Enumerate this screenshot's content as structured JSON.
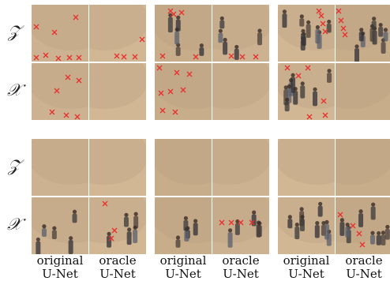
{
  "row_labels": [
    "𝒵",
    "𝒳",
    "𝒵",
    "𝒳"
  ],
  "captions": [
    [
      "original",
      "U-Net"
    ],
    [
      "oracle",
      "U-Net"
    ],
    [
      "original",
      "U-Net"
    ],
    [
      "oracle",
      "U-Net"
    ],
    [
      "original",
      "U-Net"
    ],
    [
      "oracle",
      "U-Net"
    ]
  ],
  "colors": {
    "marker": "#e8302e",
    "floor": "#c9b08f"
  }
}
